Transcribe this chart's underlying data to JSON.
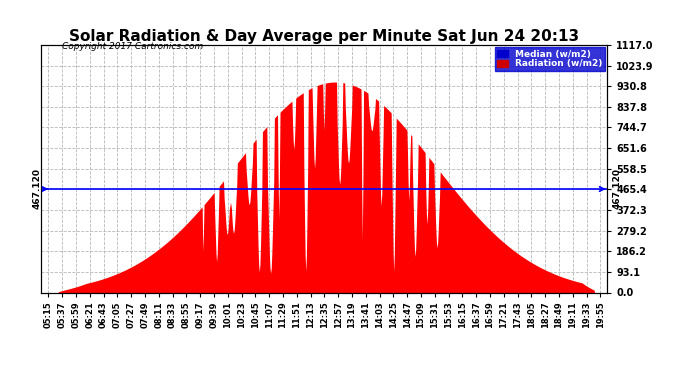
{
  "title": "Solar Radiation & Day Average per Minute Sat Jun 24 20:13",
  "copyright": "Copyright 2017 Cartronics.com",
  "median_value": 467.12,
  "median_label": "467.120",
  "y_ticks": [
    0.0,
    93.1,
    186.2,
    279.2,
    372.3,
    465.4,
    558.5,
    651.6,
    744.7,
    837.8,
    930.8,
    1023.9,
    1117.0
  ],
  "y_max": 1117.0,
  "y_min": 0.0,
  "bg_color": "#ffffff",
  "bar_color": "#ff0000",
  "median_line_color": "#0000ff",
  "grid_color": "#b0b0b0",
  "x_labels": [
    "05:15",
    "05:37",
    "05:59",
    "06:21",
    "06:43",
    "07:05",
    "07:27",
    "07:49",
    "08:11",
    "08:33",
    "08:55",
    "09:17",
    "09:39",
    "10:01",
    "10:23",
    "10:45",
    "11:07",
    "11:29",
    "11:51",
    "12:13",
    "12:35",
    "12:57",
    "13:19",
    "13:41",
    "14:03",
    "14:25",
    "14:47",
    "15:09",
    "15:31",
    "15:53",
    "16:15",
    "16:37",
    "16:59",
    "17:21",
    "17:43",
    "18:05",
    "18:27",
    "18:49",
    "19:11",
    "19:33",
    "19:55"
  ],
  "legend_median_color": "#0000cc",
  "legend_radiation_color": "#cc0000",
  "title_fontsize": 11,
  "figsize": [
    6.9,
    3.75
  ],
  "dpi": 100
}
